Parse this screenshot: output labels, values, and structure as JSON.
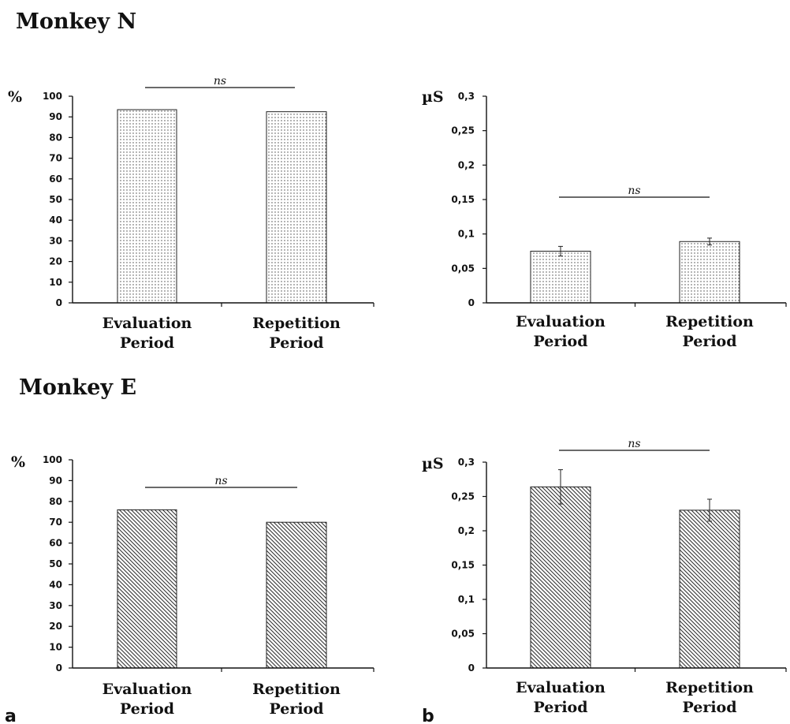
{
  "headings": {
    "top": "Monkey N",
    "bottom": "Monkey E"
  },
  "panel_labels": {
    "left": "a",
    "right": "b"
  },
  "colors": {
    "bar_edge": "#222222",
    "axis": "#111111",
    "pattern": "#444444"
  },
  "chart_data": [
    {
      "id": "monkey-n-percent",
      "type": "bar",
      "ylabel": "%",
      "ylim": [
        0,
        100
      ],
      "yticks": [
        0,
        10,
        20,
        30,
        40,
        50,
        60,
        70,
        80,
        90,
        100
      ],
      "ytick_labels": [
        "0",
        "10",
        "20",
        "30",
        "40",
        "50",
        "60",
        "70",
        "80",
        "90",
        "100"
      ],
      "categories": [
        [
          "Evaluation",
          "Period"
        ],
        [
          "Repetition",
          "Period"
        ]
      ],
      "values": [
        93.5,
        92.5
      ],
      "errors": [
        null,
        null
      ],
      "pattern": "dots",
      "significance": "ns"
    },
    {
      "id": "monkey-n-us",
      "type": "bar",
      "ylabel": "µS",
      "ylim": [
        0,
        0.3
      ],
      "yticks": [
        0,
        0.05,
        0.1,
        0.15,
        0.2,
        0.25,
        0.3
      ],
      "ytick_labels": [
        "0",
        "0,05",
        "0,1",
        "0,15",
        "0,2",
        "0,25",
        "0,3"
      ],
      "categories": [
        [
          "Evaluation",
          "Period"
        ],
        [
          "Repetition",
          "Period"
        ]
      ],
      "values": [
        0.075,
        0.089
      ],
      "errors": [
        0.007,
        0.005
      ],
      "pattern": "dots",
      "significance": "ns"
    },
    {
      "id": "monkey-e-percent",
      "type": "bar",
      "ylabel": "%",
      "ylim": [
        0,
        100
      ],
      "yticks": [
        0,
        10,
        20,
        30,
        40,
        50,
        60,
        70,
        80,
        90,
        100
      ],
      "ytick_labels": [
        "0",
        "10",
        "20",
        "30",
        "40",
        "50",
        "60",
        "70",
        "80",
        "90",
        "100"
      ],
      "categories": [
        [
          "Evaluation",
          "Period"
        ],
        [
          "Repetition",
          "Period"
        ]
      ],
      "values": [
        76,
        70
      ],
      "errors": [
        null,
        null
      ],
      "pattern": "hatch",
      "significance": "ns"
    },
    {
      "id": "monkey-e-us",
      "type": "bar",
      "ylabel": "µS",
      "ylim": [
        0,
        0.3
      ],
      "yticks": [
        0,
        0.05,
        0.1,
        0.15,
        0.2,
        0.25,
        0.3
      ],
      "ytick_labels": [
        "0",
        "0,05",
        "0,1",
        "0,15",
        "0,2",
        "0,25",
        "0,3"
      ],
      "categories": [
        [
          "Evaluation",
          "Period"
        ],
        [
          "Repetition",
          "Period"
        ]
      ],
      "values": [
        0.264,
        0.23
      ],
      "errors": [
        0.025,
        0.016
      ],
      "pattern": "hatch",
      "significance": "ns"
    }
  ]
}
